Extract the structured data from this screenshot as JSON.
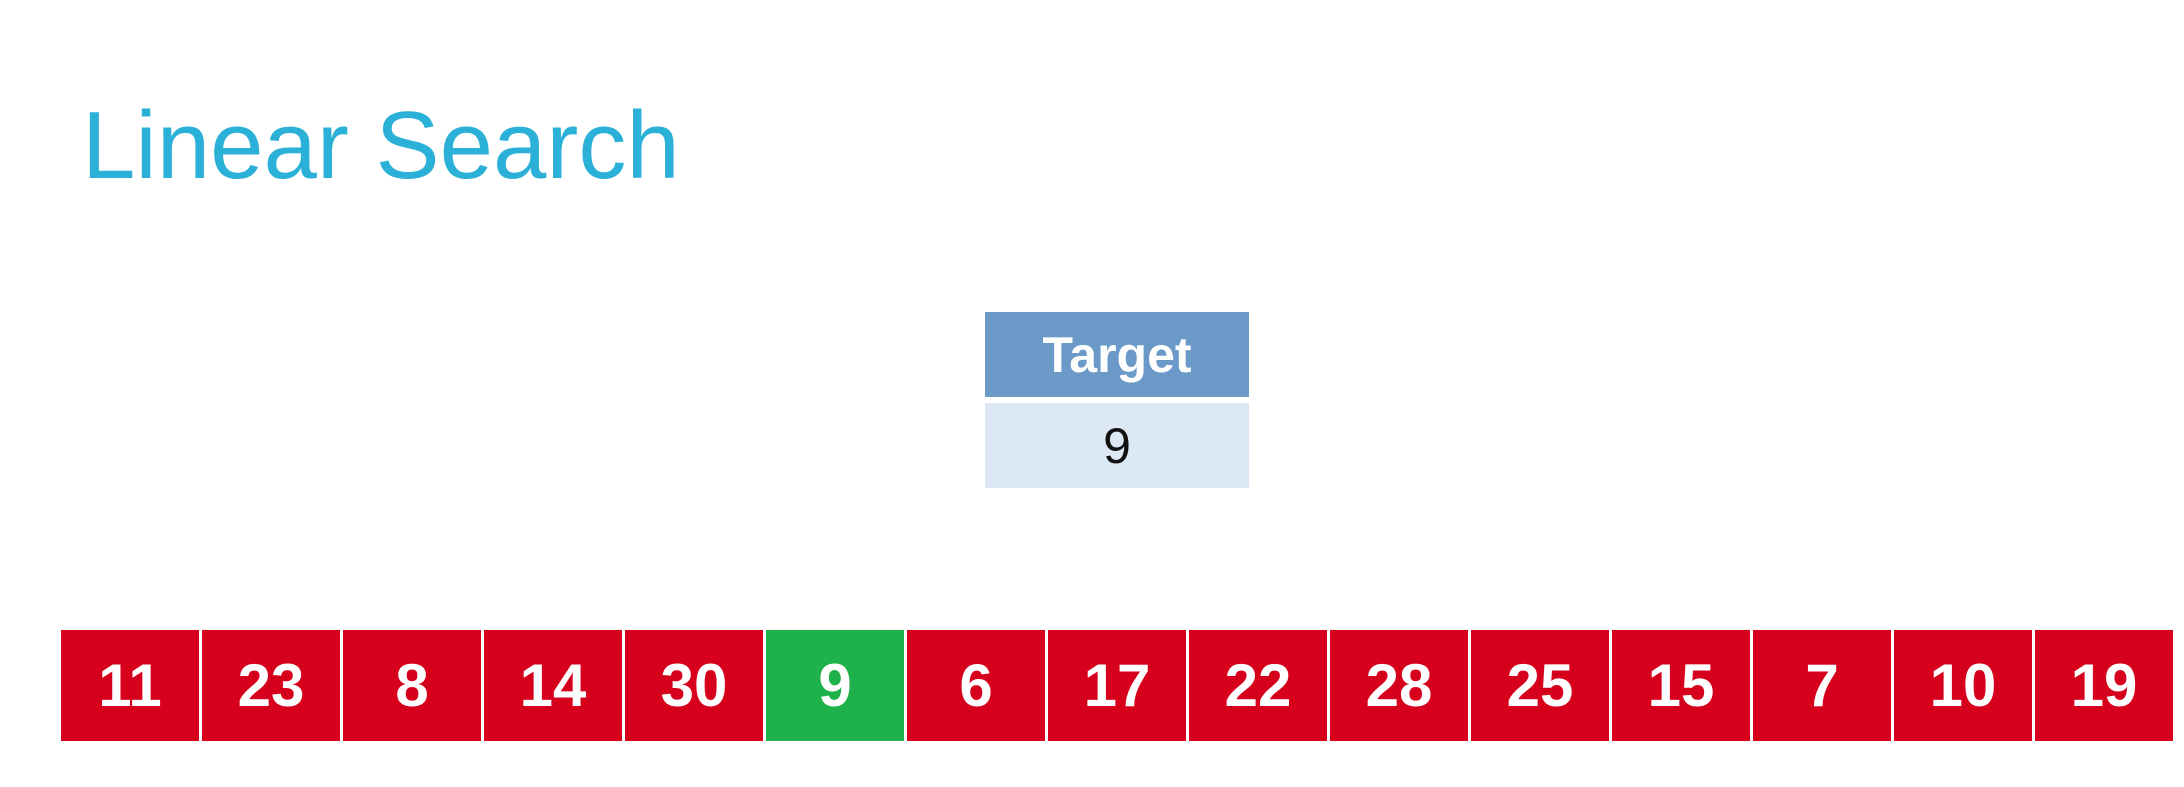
{
  "title": "Linear Search",
  "target": {
    "header": "Target",
    "value": "9"
  },
  "array": {
    "values": [
      "11",
      "23",
      "8",
      "14",
      "30",
      "9",
      "6",
      "17",
      "22",
      "28",
      "25",
      "15",
      "7",
      "10",
      "19"
    ],
    "found_index": 5
  },
  "colors": {
    "title": "#2bb0d8",
    "target_header": "#6c9ac8",
    "target_value_bg": "#dde8f5",
    "cell_default": "#d7001c",
    "cell_found": "#20b24a"
  }
}
